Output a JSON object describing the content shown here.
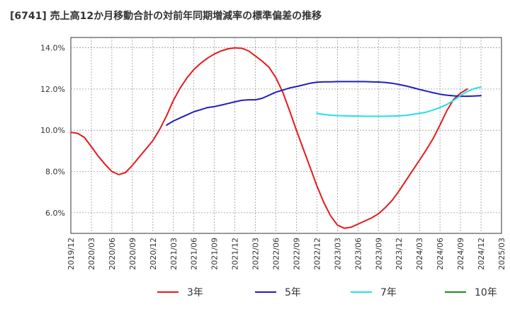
{
  "chart_data": {
    "type": "line",
    "title": "[6741]  売上高12か月移動合計の対前年同期増減率の標準偏差の推移",
    "x_ticks": [
      "2019/12",
      "2020/03",
      "2020/06",
      "2020/09",
      "2020/12",
      "2021/03",
      "2021/06",
      "2021/09",
      "2021/12",
      "2022/03",
      "2022/06",
      "2022/09",
      "2022/12",
      "2023/03",
      "2023/06",
      "2023/09",
      "2023/12",
      "2024/03",
      "2024/06",
      "2024/09",
      "2024/12",
      "2025/03"
    ],
    "y_ticks": [
      "6.0%",
      "8.0%",
      "10.0%",
      "12.0%",
      "14.0%"
    ],
    "ylim": [
      5.0,
      14.5
    ],
    "grid": true,
    "legend_position": "bottom",
    "series": [
      {
        "name": "3年",
        "color": "#e31a1c",
        "x": [
          "2019/12",
          "2020/01",
          "2020/02",
          "2020/03",
          "2020/04",
          "2020/05",
          "2020/06",
          "2020/07",
          "2020/08",
          "2020/09",
          "2020/10",
          "2020/11",
          "2020/12",
          "2021/01",
          "2021/02",
          "2021/03",
          "2021/04",
          "2021/05",
          "2021/06",
          "2021/07",
          "2021/08",
          "2021/09",
          "2021/10",
          "2021/11",
          "2021/12",
          "2022/01",
          "2022/02",
          "2022/03",
          "2022/04",
          "2022/05",
          "2022/06",
          "2022/07",
          "2022/08",
          "2022/09",
          "2022/10",
          "2022/11",
          "2022/12",
          "2023/01",
          "2023/02",
          "2023/03",
          "2023/04",
          "2023/05",
          "2023/06",
          "2023/07",
          "2023/08",
          "2023/09",
          "2023/10",
          "2023/11",
          "2023/12",
          "2024/01",
          "2024/02",
          "2024/03",
          "2024/04",
          "2024/05",
          "2024/06",
          "2024/07",
          "2024/08",
          "2024/09",
          "2024/10",
          "2024/11",
          "2024/12"
        ],
        "values": [
          9.9,
          9.85,
          9.65,
          9.2,
          8.75,
          8.35,
          8.0,
          7.85,
          7.95,
          8.3,
          8.7,
          9.1,
          9.5,
          10.05,
          10.7,
          11.45,
          12.05,
          12.55,
          12.95,
          13.25,
          13.5,
          13.7,
          13.85,
          13.95,
          14.0,
          13.98,
          13.85,
          13.6,
          13.35,
          13.05,
          12.55,
          11.85,
          10.95,
          10.0,
          9.1,
          8.2,
          7.3,
          6.5,
          5.85,
          5.4,
          5.25,
          5.3,
          5.45,
          5.6,
          5.75,
          5.95,
          6.25,
          6.6,
          7.05,
          7.55,
          8.05,
          8.55,
          9.05,
          9.6,
          10.25,
          10.95,
          11.5,
          11.8,
          12.0,
          null,
          null
        ]
      },
      {
        "name": "5年",
        "color": "#1f1fbf",
        "x": [
          "2021/02",
          "2021/03",
          "2021/04",
          "2021/05",
          "2021/06",
          "2021/07",
          "2021/08",
          "2021/09",
          "2021/10",
          "2021/11",
          "2021/12",
          "2022/01",
          "2022/02",
          "2022/03",
          "2022/04",
          "2022/05",
          "2022/06",
          "2022/07",
          "2022/08",
          "2022/09",
          "2022/10",
          "2022/11",
          "2022/12",
          "2023/01",
          "2023/02",
          "2023/03",
          "2023/04",
          "2023/05",
          "2023/06",
          "2023/07",
          "2023/08",
          "2023/09",
          "2023/10",
          "2023/11",
          "2023/12",
          "2024/01",
          "2024/02",
          "2024/03",
          "2024/04",
          "2024/05",
          "2024/06",
          "2024/07",
          "2024/08",
          "2024/09",
          "2024/10",
          "2024/11",
          "2024/12"
        ],
        "values": [
          10.25,
          10.45,
          10.6,
          10.75,
          10.9,
          11.0,
          11.1,
          11.15,
          11.22,
          11.3,
          11.38,
          11.45,
          11.48,
          11.48,
          11.55,
          11.7,
          11.85,
          11.95,
          12.05,
          12.12,
          12.2,
          12.28,
          12.33,
          12.35,
          12.35,
          12.36,
          12.36,
          12.36,
          12.36,
          12.36,
          12.35,
          12.34,
          12.32,
          12.28,
          12.22,
          12.15,
          12.07,
          11.98,
          11.9,
          11.82,
          11.75,
          11.7,
          11.67,
          11.65,
          11.65,
          11.66,
          11.68
        ]
      },
      {
        "name": "7年",
        "color": "#22e0e8",
        "x": [
          "2022/12",
          "2023/01",
          "2023/02",
          "2023/03",
          "2023/04",
          "2023/05",
          "2023/06",
          "2023/07",
          "2023/08",
          "2023/09",
          "2023/10",
          "2023/11",
          "2023/12",
          "2024/01",
          "2024/02",
          "2024/03",
          "2024/04",
          "2024/05",
          "2024/06",
          "2024/07",
          "2024/08",
          "2024/09",
          "2024/10",
          "2024/11",
          "2024/12"
        ],
        "values": [
          10.82,
          10.77,
          10.73,
          10.71,
          10.7,
          10.69,
          10.69,
          10.68,
          10.68,
          10.68,
          10.68,
          10.69,
          10.7,
          10.72,
          10.77,
          10.82,
          10.88,
          10.98,
          11.1,
          11.25,
          11.45,
          11.68,
          11.88,
          12.02,
          12.1
        ]
      },
      {
        "name": "10年",
        "color": "#1a8c1a",
        "x": [],
        "values": []
      }
    ]
  }
}
